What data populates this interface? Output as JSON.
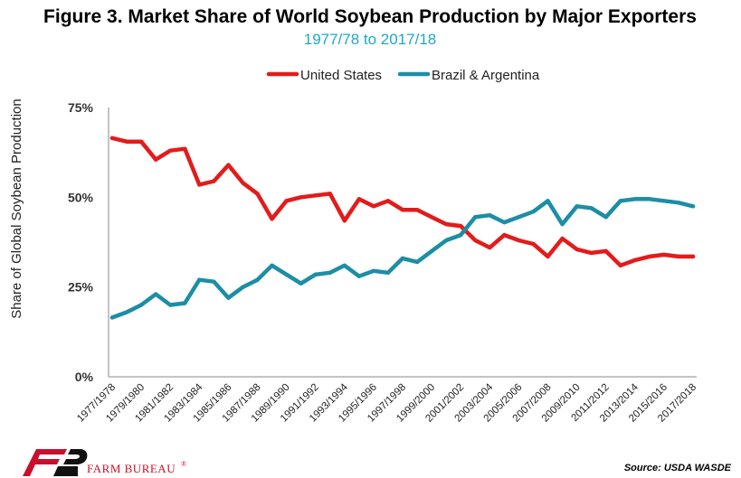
{
  "chart_data": {
    "type": "line",
    "title": "Figure 3. Market Share of World Soybean Production by Major Exporters",
    "subtitle": "1977/78 to 2017/18",
    "ylabel": "Share of Global Soybean Production",
    "ylim": [
      0,
      75
    ],
    "yticks": [
      0,
      25,
      50,
      75
    ],
    "ytick_labels": [
      "0%",
      "25%",
      "50%",
      "75%"
    ],
    "categories": [
      "1977/1978",
      "1978/1979",
      "1979/1980",
      "1980/1981",
      "1981/1982",
      "1982/1983",
      "1983/1984",
      "1984/1985",
      "1985/1986",
      "1986/1987",
      "1987/1988",
      "1988/1989",
      "1989/1990",
      "1990/1991",
      "1991/1992",
      "1992/1993",
      "1993/1994",
      "1994/1995",
      "1995/1996",
      "1996/1997",
      "1997/1998",
      "1998/1999",
      "1999/2000",
      "2000/2001",
      "2001/2002",
      "2002/2003",
      "2003/2004",
      "2004/2005",
      "2005/2006",
      "2006/2007",
      "2007/2008",
      "2008/2009",
      "2009/2010",
      "2010/2011",
      "2011/2012",
      "2012/2013",
      "2013/2014",
      "2014/2015",
      "2015/2016",
      "2016/2017",
      "2017/2018"
    ],
    "xtick_labels": [
      "1977/1978",
      "1979/1980",
      "1981/1982",
      "1983/1984",
      "1985/1986",
      "1987/1988",
      "1989/1990",
      "1991/1992",
      "1993/1994",
      "1995/1996",
      "1997/1998",
      "1999/2000",
      "2001/2002",
      "2003/2004",
      "2005/2006",
      "2007/2008",
      "2009/2010",
      "2011/2012",
      "2013/2014",
      "2015/2016",
      "2017/2018"
    ],
    "legend_position": "top-center",
    "grid": false,
    "series": [
      {
        "name": "United States",
        "color": "#e31b1b",
        "values": [
          66.5,
          65.5,
          65.5,
          60.5,
          63,
          63.5,
          53.5,
          54.5,
          59,
          54,
          51,
          44,
          49,
          50,
          50.5,
          51,
          43.5,
          49.5,
          47.5,
          49,
          46.5,
          46.5,
          44.5,
          42.5,
          42,
          38,
          36,
          39.5,
          38,
          37,
          33.5,
          38.5,
          35.5,
          34.5,
          35,
          31,
          32.5,
          33.5,
          34,
          33.5,
          33.5
        ]
      },
      {
        "name": "Brazil & Argentina",
        "color": "#1c8ea6",
        "values": [
          16.5,
          18,
          20,
          23,
          20,
          20.5,
          27,
          26.5,
          22,
          25,
          27,
          31,
          28.5,
          26,
          28.5,
          29,
          31,
          28,
          29.5,
          29,
          33,
          32,
          35,
          38,
          39.5,
          44.5,
          45,
          43,
          44.5,
          46,
          49,
          42.5,
          47.5,
          47,
          44.5,
          49,
          49.5,
          49.5,
          49,
          48.5,
          47.5
        ]
      }
    ]
  },
  "footer": {
    "source": "Source: USDA WASDE",
    "logo_text": "FARM BUREAU",
    "logo_mark": "®"
  }
}
